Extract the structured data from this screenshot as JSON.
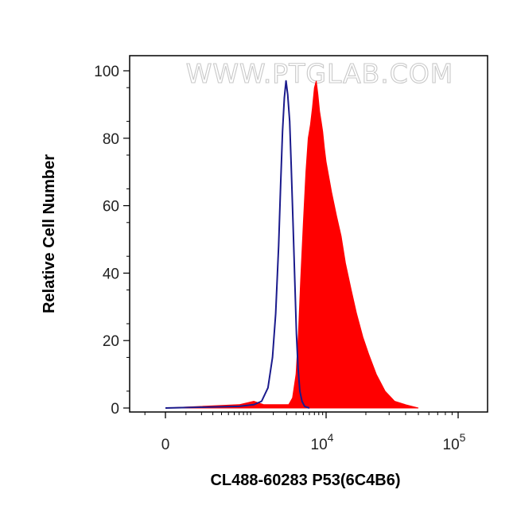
{
  "chart_data": {
    "type": "area",
    "title": "",
    "watermark": "WWW.PTGLAB.COM",
    "xlabel": "CL488-60283 P53(6C4B6)",
    "ylabel": "Relative Cell Number",
    "x_scale": "biexponential",
    "xlim": [
      -1500,
      200000
    ],
    "ylim": [
      0,
      100
    ],
    "x_ticks": [
      {
        "value": 0,
        "base": "0",
        "exp": ""
      },
      {
        "value": 10000,
        "base": "10",
        "exp": "4"
      },
      {
        "value": 100000,
        "base": "10",
        "exp": "5"
      }
    ],
    "y_ticks": [
      {
        "value": 0,
        "label": "0"
      },
      {
        "value": 20,
        "label": "20"
      },
      {
        "value": 40,
        "label": "40"
      },
      {
        "value": 60,
        "label": "60"
      },
      {
        "value": 80,
        "label": "80"
      },
      {
        "value": 100,
        "label": "100"
      }
    ],
    "grid": false,
    "legend": "none",
    "series": [
      {
        "kind": "outline",
        "color": "#1a1a8c",
        "points": [
          [
            0,
            0
          ],
          [
            700,
            0.5
          ],
          [
            1100,
            1
          ],
          [
            1400,
            2
          ],
          [
            1700,
            6
          ],
          [
            1950,
            15
          ],
          [
            2150,
            28
          ],
          [
            2350,
            48
          ],
          [
            2500,
            66
          ],
          [
            2650,
            82
          ],
          [
            2800,
            92
          ],
          [
            2950,
            97
          ],
          [
            3100,
            93
          ],
          [
            3300,
            85
          ],
          [
            3450,
            72
          ],
          [
            3650,
            55
          ],
          [
            3850,
            38
          ],
          [
            4050,
            22
          ],
          [
            4250,
            12
          ],
          [
            4500,
            5
          ],
          [
            4800,
            2
          ],
          [
            5200,
            0.5
          ],
          [
            6000,
            0
          ]
        ]
      },
      {
        "kind": "filled",
        "color": "#ff0000",
        "points": [
          [
            0,
            0
          ],
          [
            700,
            1
          ],
          [
            1100,
            2
          ],
          [
            1500,
            1
          ],
          [
            2200,
            1
          ],
          [
            3200,
            1
          ],
          [
            3600,
            3
          ],
          [
            4000,
            10
          ],
          [
            4300,
            22
          ],
          [
            4600,
            38
          ],
          [
            5000,
            55
          ],
          [
            5400,
            70
          ],
          [
            5800,
            80
          ],
          [
            6200,
            84
          ],
          [
            6600,
            89
          ],
          [
            7000,
            95
          ],
          [
            7400,
            97
          ],
          [
            7800,
            93
          ],
          [
            8200,
            88
          ],
          [
            8600,
            85
          ],
          [
            9000,
            82
          ],
          [
            9500,
            77
          ],
          [
            10000,
            73
          ],
          [
            11000,
            64
          ],
          [
            12000,
            57
          ],
          [
            13000,
            51
          ],
          [
            14000,
            43
          ],
          [
            15500,
            35
          ],
          [
            17000,
            28
          ],
          [
            19000,
            21
          ],
          [
            21000,
            16
          ],
          [
            24000,
            10
          ],
          [
            28000,
            5
          ],
          [
            33000,
            2
          ],
          [
            40000,
            1
          ],
          [
            50000,
            0
          ]
        ]
      }
    ]
  }
}
